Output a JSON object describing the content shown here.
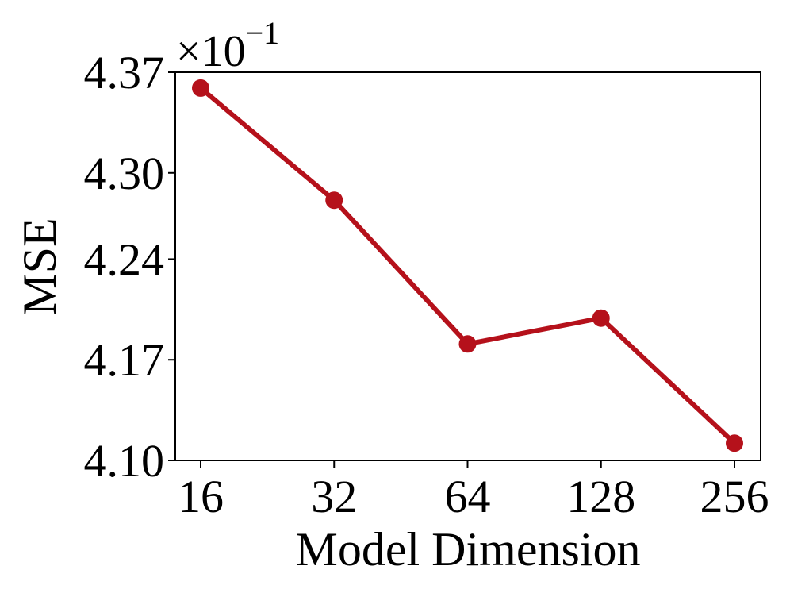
{
  "chart_data": {
    "type": "line",
    "x": [
      "16",
      "32",
      "64",
      "128",
      "256"
    ],
    "series": [
      {
        "values": [
          4.359,
          4.281,
          4.181,
          4.199,
          4.112
        ]
      }
    ],
    "xlabel": "Model Dimension",
    "ylabel": "MSE",
    "yticks": [
      "4.10",
      "4.17",
      "4.24",
      "4.30",
      "4.37"
    ],
    "ylim": [
      4.1,
      4.37
    ],
    "y_multiplier": {
      "base": "×10",
      "exponent": "−1"
    },
    "grid": false,
    "legend": "none",
    "colors": {
      "series": "#b5111b"
    }
  }
}
